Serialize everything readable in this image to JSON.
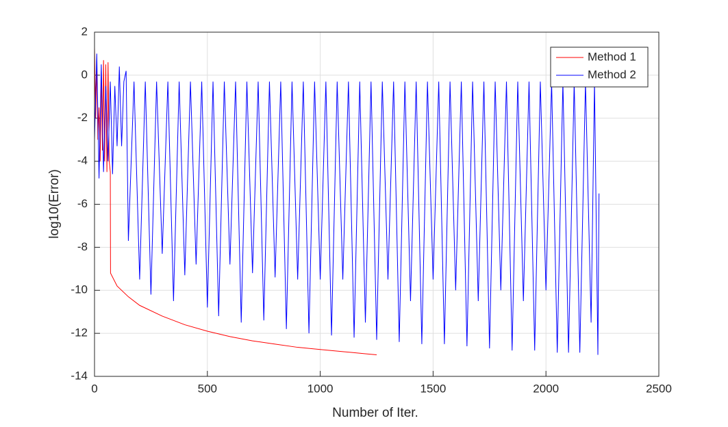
{
  "chart_data": {
    "type": "line",
    "xlabel": "Number of Iter.",
    "ylabel": "log10(Error)",
    "xlim": [
      0,
      2500
    ],
    "ylim": [
      -14,
      2
    ],
    "xticks": [
      0,
      500,
      1000,
      1500,
      2000,
      2500
    ],
    "yticks": [
      -14,
      -12,
      -10,
      -8,
      -6,
      -4,
      -2,
      0,
      2
    ],
    "grid": true,
    "legend": "top-right",
    "series": [
      {
        "name": "Method 1",
        "color": "#ff0000",
        "x": [
          0,
          5,
          10,
          15,
          20,
          25,
          30,
          35,
          40,
          45,
          50,
          55,
          60,
          65,
          70,
          71,
          100,
          150,
          200,
          300,
          400,
          500,
          600,
          700,
          800,
          900,
          1000,
          1100,
          1200,
          1250
        ],
        "values": [
          1.3,
          -2,
          0.5,
          -3,
          -1.5,
          -4,
          0.2,
          -3.5,
          0.7,
          -4,
          0.5,
          -4.5,
          0.6,
          -4,
          -4.5,
          -9.2,
          -9.8,
          -10.3,
          -10.7,
          -11.2,
          -11.6,
          -11.9,
          -12.15,
          -12.35,
          -12.5,
          -12.65,
          -12.75,
          -12.85,
          -12.95,
          -13
        ]
      },
      {
        "name": "Method 2",
        "color": "#0000ff",
        "x": [
          0,
          10,
          20,
          30,
          40,
          50,
          60,
          70,
          80,
          90,
          100,
          110,
          120,
          130,
          140,
          150,
          175,
          200,
          225,
          250,
          275,
          300,
          325,
          350,
          375,
          400,
          425,
          450,
          475,
          500,
          525,
          550,
          575,
          600,
          625,
          650,
          675,
          700,
          725,
          750,
          775,
          800,
          825,
          850,
          875,
          900,
          925,
          950,
          975,
          1000,
          1025,
          1050,
          1075,
          1100,
          1125,
          1150,
          1175,
          1200,
          1225,
          1250,
          1275,
          1300,
          1325,
          1350,
          1375,
          1400,
          1425,
          1450,
          1475,
          1500,
          1525,
          1550,
          1575,
          1600,
          1625,
          1650,
          1675,
          1700,
          1725,
          1750,
          1775,
          1800,
          1825,
          1850,
          1875,
          1900,
          1925,
          1950,
          1975,
          2000,
          2025,
          2050,
          2075,
          2100,
          2125,
          2150,
          2175,
          2200,
          2215,
          2230,
          2235
        ],
        "values": [
          -3,
          1,
          -4.8,
          0.5,
          -4.5,
          -0.5,
          -4,
          -0.3,
          -4.6,
          -0.5,
          -3.3,
          0.4,
          -3.3,
          -0.3,
          0.2,
          -7.7,
          -0.3,
          -9.5,
          -0.3,
          -10.2,
          -0.3,
          -8.3,
          -0.3,
          -10.5,
          -0.3,
          -9.3,
          -0.3,
          -8.8,
          -0.3,
          -10.8,
          -0.3,
          -11.2,
          -0.3,
          -8.8,
          -0.3,
          -11.5,
          -0.3,
          -9.2,
          -0.3,
          -11.4,
          -0.3,
          -9.4,
          -0.3,
          -11.8,
          -0.3,
          -9.5,
          -0.3,
          -12,
          -0.3,
          -9.5,
          -0.3,
          -12.1,
          -0.3,
          -9.5,
          -0.3,
          -12.2,
          -0.3,
          -11.5,
          -0.3,
          -12.3,
          -0.3,
          -9.5,
          -0.3,
          -12.4,
          -0.3,
          -10.5,
          -0.3,
          -12.5,
          -0.3,
          -9.5,
          -0.3,
          -12.5,
          -0.3,
          -10,
          -0.3,
          -12.6,
          -0.3,
          -10.5,
          -0.3,
          -12.7,
          -0.3,
          -10,
          -0.3,
          -12.8,
          -0.3,
          -10.5,
          -0.3,
          -12.8,
          -0.3,
          -10,
          -0.3,
          -12.9,
          -0.3,
          -12.9,
          -0.3,
          -12.9,
          -0.3,
          -11.5,
          -0.3,
          -13,
          -5.5
        ]
      }
    ]
  }
}
